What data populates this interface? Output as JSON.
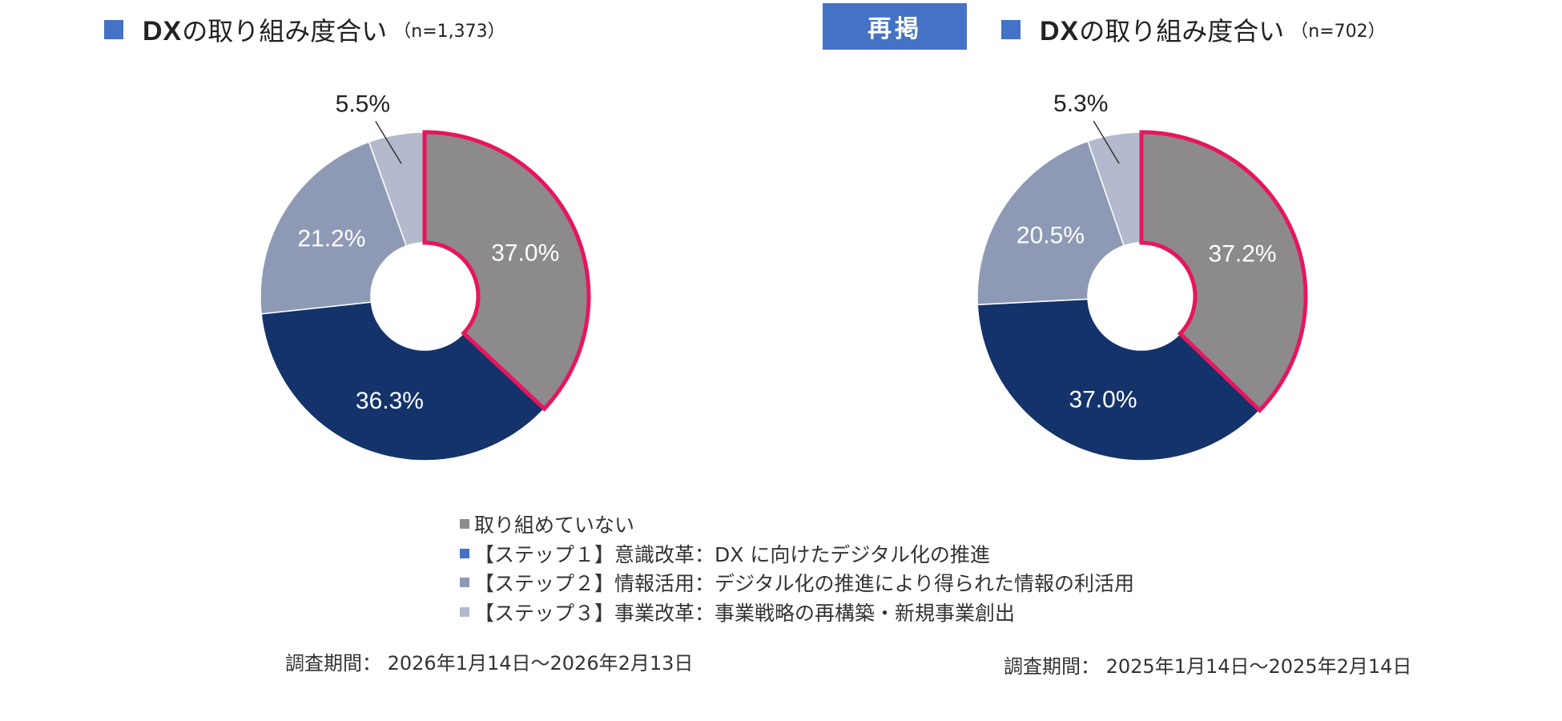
{
  "header": {
    "repost_label": "再掲"
  },
  "legend": [
    {
      "label": "取り組めていない",
      "color": "#8C8C8C"
    },
    {
      "label": "【ステップ１】意識改革：DX に向けたデジタル化の推進",
      "color": "#4472C4"
    },
    {
      "label": "【ステップ２】情報活用：デジタル化の推進により得られた情報の利活用",
      "color": "#8E9AB5"
    },
    {
      "label": "【ステップ３】事業改革：事業戦略の再構築・新規事業創出",
      "color": "#B4BACE"
    }
  ],
  "chart_data": [
    {
      "type": "pie",
      "style": "donut",
      "title_bold": "DX",
      "title_rest": "の取り組み度合い",
      "n_label": "（n=1,373）",
      "period": "調査期間： 2026年1月14日～2026年2月13日",
      "categories": [
        "取り組めていない",
        "【ステップ１】意識改革",
        "【ステップ２】情報活用",
        "【ステップ３】事業改革"
      ],
      "values": [
        37.0,
        36.3,
        21.2,
        5.5
      ],
      "labels": [
        "37.0%",
        "36.3%",
        "21.2%",
        "5.5%"
      ],
      "colors": [
        "#8C8A8D",
        "#14336B",
        "#8E9AB5",
        "#B4BACE"
      ],
      "highlight_color": "#E8155E"
    },
    {
      "type": "pie",
      "style": "donut",
      "title_bold": "DX",
      "title_rest": "の取り組み度合い",
      "n_label": "（n=702）",
      "period": "調査期間： 2025年1月14日～2025年2月14日",
      "categories": [
        "取り組めていない",
        "【ステップ１】意識改革",
        "【ステップ２】情報活用",
        "【ステップ３】事業改革"
      ],
      "values": [
        37.2,
        37.0,
        20.5,
        5.3
      ],
      "labels": [
        "37.2%",
        "37.0%",
        "20.5%",
        "5.3%"
      ],
      "colors": [
        "#8C8A8D",
        "#14336B",
        "#8E9AB5",
        "#B4BACE"
      ],
      "highlight_color": "#E8155E"
    }
  ]
}
